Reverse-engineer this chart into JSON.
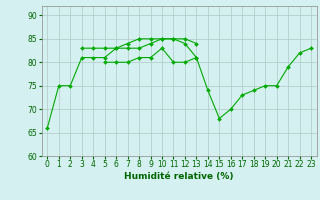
{
  "title": "",
  "xlabel": "Humidité relative (%)",
  "ylabel": "",
  "background_color": "#d4f0f0",
  "grid_color": "#b0c8c8",
  "line_color": "#00aa00",
  "x": [
    0,
    1,
    2,
    3,
    4,
    5,
    6,
    7,
    8,
    9,
    10,
    11,
    12,
    13,
    14,
    15,
    16,
    17,
    18,
    19,
    20,
    21,
    22,
    23
  ],
  "series1": [
    66,
    75,
    75,
    81,
    81,
    81,
    83,
    83,
    83,
    84,
    85,
    85,
    84,
    81,
    null,
    null,
    null,
    null,
    null,
    null,
    null,
    null,
    null,
    null
  ],
  "series2": [
    null,
    null,
    null,
    83,
    83,
    83,
    83,
    84,
    85,
    85,
    85,
    85,
    85,
    84,
    null,
    null,
    null,
    null,
    null,
    null,
    null,
    null,
    null,
    null
  ],
  "series3": [
    null,
    null,
    null,
    null,
    null,
    80,
    80,
    80,
    81,
    81,
    83,
    80,
    80,
    81,
    74,
    68,
    70,
    73,
    74,
    75,
    75,
    79,
    82,
    83
  ],
  "ylim": [
    60,
    92
  ],
  "yticks": [
    60,
    65,
    70,
    75,
    80,
    85,
    90
  ],
  "xlim": [
    -0.5,
    23.5
  ]
}
